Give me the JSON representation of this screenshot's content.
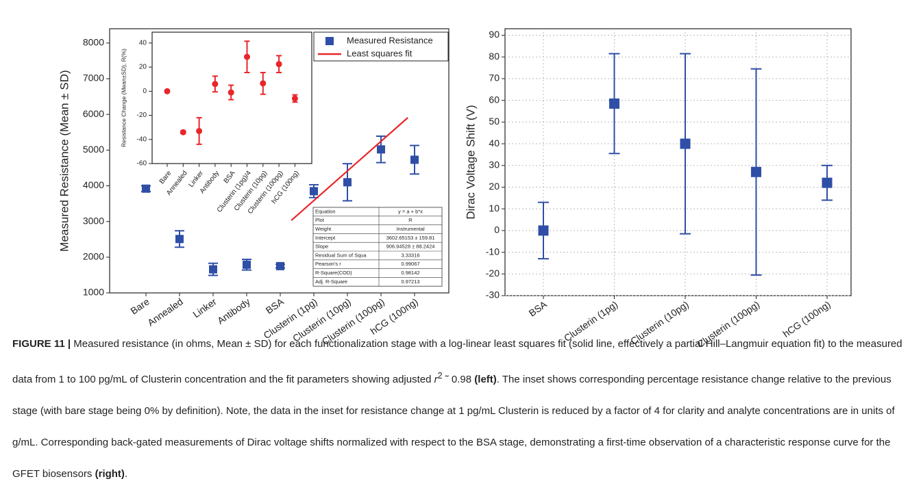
{
  "chart_data": [
    {
      "type": "errorbar",
      "y_label": "Measured Resistance (Mean ± SD)",
      "categories": [
        "Bare",
        "Annealed",
        "Linker",
        "Antibody",
        "BSA",
        "Clusterin (1pg)",
        "Clusterin (10pg)",
        "Clusterin (100pg)",
        "hCG (100ng)"
      ],
      "series": [
        {
          "name": "Measured Resistance",
          "color": "#2f4ea6",
          "marker": "square",
          "values": [
            3920,
            2510,
            1660,
            1790,
            1750,
            3850,
            4100,
            5020,
            4730
          ],
          "errors": [
            80,
            230,
            170,
            150,
            50,
            180,
            520,
            370,
            400
          ]
        },
        {
          "name": "Least squares fit",
          "color": "#e8262a",
          "x": [
            4.33,
            7.8
          ],
          "values": [
            3030,
            5910
          ]
        }
      ],
      "ylim": [
        1000,
        8400
      ],
      "yticks": [
        1000,
        2000,
        3000,
        4000,
        5000,
        6000,
        7000,
        8000
      ],
      "legend": "upper right",
      "fit_table": [
        [
          "Equation",
          "y = a + b*x"
        ],
        [
          "Plot",
          "R"
        ],
        [
          "Weight",
          "Instrumental"
        ],
        [
          "Intercept",
          "3602.65153 ± 159.81"
        ],
        [
          "Slope",
          "906.94528 ± 88.2424"
        ],
        [
          "Residual Sum of Squa",
          "3.33316"
        ],
        [
          "Pearson's r",
          "0.99067"
        ],
        [
          "R-Square(COD)",
          "0.98142"
        ],
        [
          "Adj. R-Square",
          "0.97213"
        ]
      ]
    },
    {
      "type": "errorbar",
      "y_label": "Resistance Change (Mean±SD),  R(%)",
      "categories": [
        "Bare",
        "Annealed",
        "Linker",
        "Antibody",
        "BSA",
        "Clusterin (1pg)/4",
        "Clusterin (10pg)",
        "Clusterin (100pg)",
        "hCG (100ng)"
      ],
      "color": "#e8262a",
      "marker": "circle",
      "values": [
        0,
        -34,
        -33,
        6,
        -1,
        28.5,
        6.5,
        22.5,
        -6
      ],
      "errors": [
        0.5,
        1,
        11,
        6.5,
        6,
        13,
        9,
        7,
        3
      ],
      "ylim": [
        -60,
        49
      ],
      "yticks": [
        -60,
        -40,
        -20,
        0,
        20,
        40
      ]
    },
    {
      "type": "errorbar",
      "y_label": "Dirac Voltage Shift (V)",
      "categories": [
        "BSA",
        "Clusterin (1pg)",
        "Clusterin (10pg)",
        "Clusterin (100pg)",
        "hCG (100ng)"
      ],
      "color": "#2f4ea6",
      "marker": "square",
      "values": [
        0,
        58.5,
        40,
        27,
        22
      ],
      "errors": [
        13,
        23,
        41.5,
        47.5,
        8
      ],
      "ylim": [
        -30,
        93
      ],
      "yticks": [
        -30,
        -20,
        -10,
        0,
        10,
        20,
        30,
        40,
        50,
        60,
        70,
        80,
        90
      ],
      "grid": true
    }
  ],
  "caption": {
    "label": "FIGURE 11 |",
    "text1": " Measured resistance (in ohms, Mean ± SD) for each functionalization stage with a log-linear least squares fit (solid line, effectively a partial Hill–Langmuir equation fit) to the measured data from 1 to 100 pg/mL of Clusterin concentration and the fit parameters showing adjusted ",
    "r": "r",
    "sup": "2",
    "text2": " ˜ 0.98 ",
    "left": "(left)",
    "text3": ". The inset shows corresponding percentage resistance change relative to the previous stage (with bare stage being 0% by definition). Note, the data in the inset for resistance change at 1 pg/mL Clusterin is reduced by a factor of 4 for clarity and analyte concentrations are in units of g/mL. Corresponding back-gated measurements of Dirac voltage shifts normalized with respect to the BSA stage, demonstrating a first-time observation of a characteristic response curve for the GFET biosensors ",
    "right": "(right)",
    "end": "."
  }
}
